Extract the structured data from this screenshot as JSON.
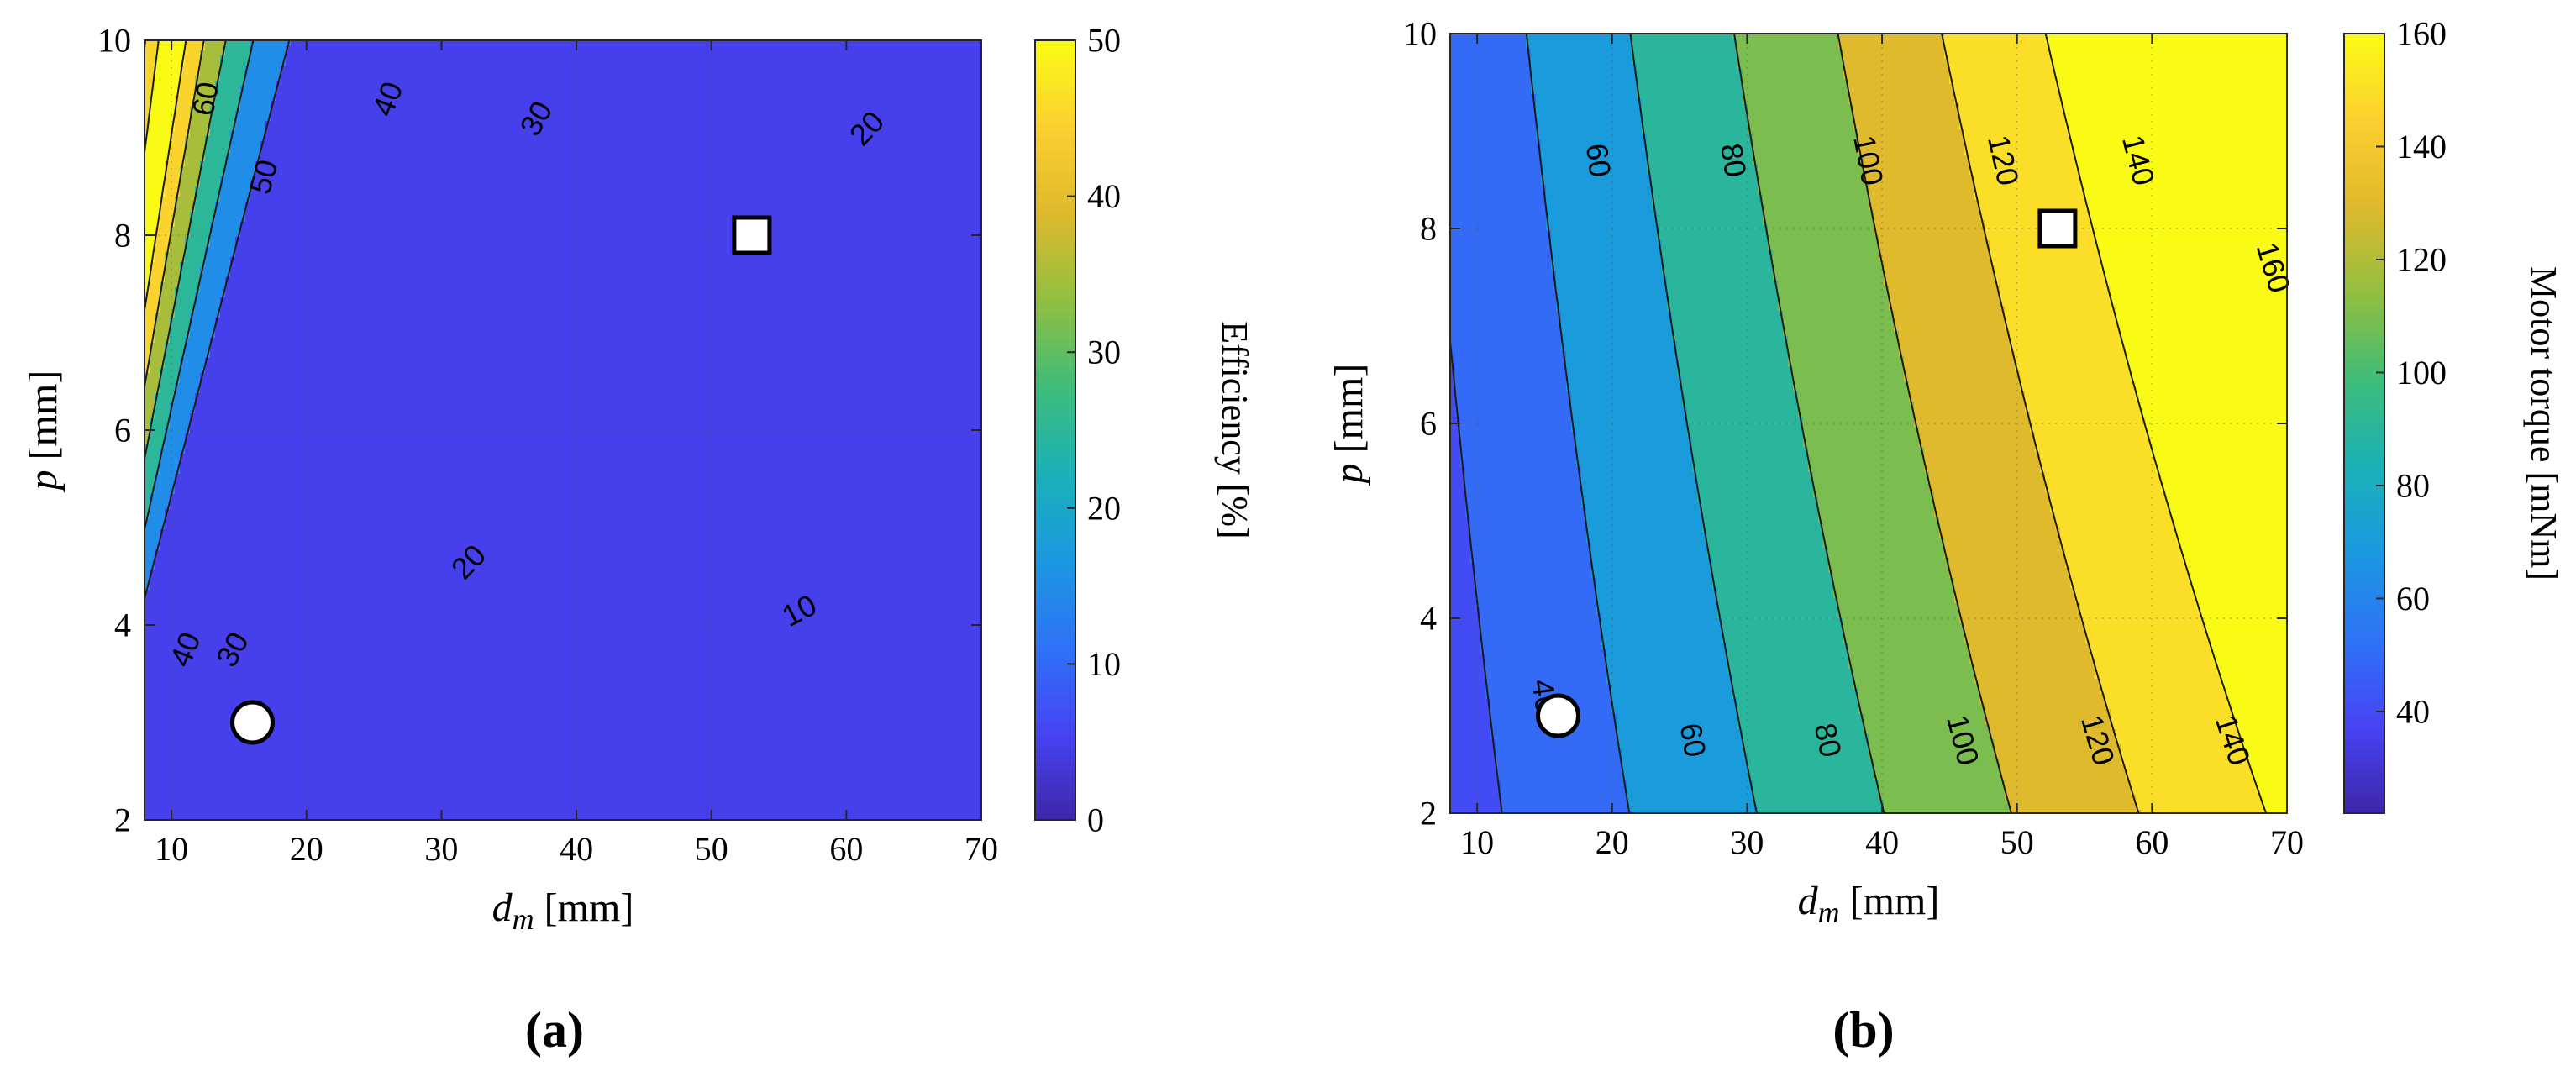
{
  "colormap": [
    "#3e26a8",
    "#4743f4",
    "#2f72f7",
    "#1a98e1",
    "#1ab1b7",
    "#3ebc7a",
    "#91bf40",
    "#deb92d",
    "#fbcf30",
    "#f9fb15"
  ],
  "marker_stroke": "#000000",
  "marker_fill": "#ffffff",
  "chart_data": [
    {
      "type": "contour",
      "panel_label": "(a)",
      "title": "",
      "xlabel_main": "d",
      "xlabel_sub": "m",
      "xlabel_unit": " [mm]",
      "ylabel_main": "p",
      "ylabel_unit": " [mm]",
      "xlim": [
        8,
        70
      ],
      "ylim": [
        2,
        10
      ],
      "xticks": [
        10,
        20,
        30,
        40,
        50,
        60,
        70
      ],
      "yticks": [
        2,
        4,
        6,
        8,
        10
      ],
      "colorbar": {
        "label": "Efficiency [%]",
        "range": [
          0,
          50
        ],
        "ticks": [
          0,
          10,
          20,
          30,
          40,
          50
        ]
      },
      "contour_levels": [
        10,
        20,
        30,
        40,
        50,
        60
      ],
      "contour_labels": [
        {
          "text": "60",
          "x": 12.5,
          "y": 9.4
        },
        {
          "text": "50",
          "x": 16.8,
          "y": 8.6
        },
        {
          "text": "40",
          "x": 26.0,
          "y": 9.4
        },
        {
          "text": "30",
          "x": 37.0,
          "y": 9.2
        },
        {
          "text": "20",
          "x": 61.5,
          "y": 9.1
        },
        {
          "text": "40",
          "x": 11.0,
          "y": 3.75
        },
        {
          "text": "30",
          "x": 14.5,
          "y": 3.75
        },
        {
          "text": "20",
          "x": 32.0,
          "y": 4.65
        },
        {
          "text": "10",
          "x": 56.5,
          "y": 4.15
        }
      ],
      "markers": [
        {
          "shape": "circle",
          "x": 16,
          "y": 3
        },
        {
          "shape": "square",
          "x": 53,
          "y": 8
        }
      ],
      "grid": "dotted"
    },
    {
      "type": "contour",
      "panel_label": "(b)",
      "title": "",
      "xlabel_main": "d",
      "xlabel_sub": "m",
      "xlabel_unit": " [mm]",
      "ylabel_main": "p",
      "ylabel_unit": " [mm]",
      "xlim": [
        8,
        70
      ],
      "ylim": [
        2,
        10
      ],
      "xticks": [
        10,
        20,
        30,
        40,
        50,
        60,
        70
      ],
      "yticks": [
        2,
        4,
        6,
        8,
        10
      ],
      "colorbar": {
        "label": "Motor torque [mNm]",
        "range": [
          22,
          160
        ],
        "ticks": [
          40,
          60,
          80,
          100,
          120,
          140,
          160
        ]
      },
      "contour_levels": [
        40,
        60,
        80,
        100,
        120,
        140,
        160
      ],
      "contour_labels": [
        {
          "text": "60",
          "x": 19.0,
          "y": 8.7
        },
        {
          "text": "80",
          "x": 29.0,
          "y": 8.7
        },
        {
          "text": "100",
          "x": 39.0,
          "y": 8.7
        },
        {
          "text": "120",
          "x": 49.0,
          "y": 8.7
        },
        {
          "text": "140",
          "x": 59.0,
          "y": 8.7
        },
        {
          "text": "160",
          "x": 69.0,
          "y": 7.6
        },
        {
          "text": "40",
          "x": 15.0,
          "y": 3.2
        },
        {
          "text": "60",
          "x": 26.0,
          "y": 2.75
        },
        {
          "text": "80",
          "x": 36.0,
          "y": 2.75
        },
        {
          "text": "100",
          "x": 46.0,
          "y": 2.75
        },
        {
          "text": "120",
          "x": 56.0,
          "y": 2.75
        },
        {
          "text": "140",
          "x": 66.0,
          "y": 2.75
        }
      ],
      "markers": [
        {
          "shape": "circle",
          "x": 16,
          "y": 3
        },
        {
          "shape": "square",
          "x": 53,
          "y": 8
        }
      ],
      "grid": "dotted"
    }
  ]
}
